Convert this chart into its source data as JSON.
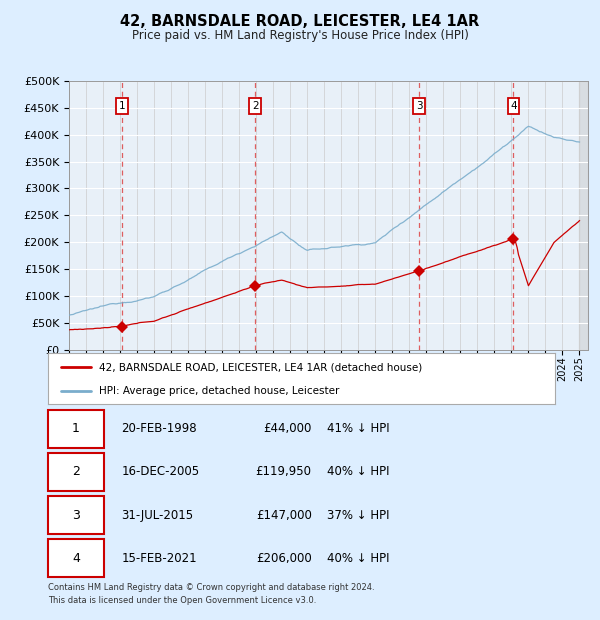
{
  "title1": "42, BARNSDALE ROAD, LEICESTER, LE4 1AR",
  "title2": "Price paid vs. HM Land Registry's House Price Index (HPI)",
  "legend1": "42, BARNSDALE ROAD, LEICESTER, LE4 1AR (detached house)",
  "legend2": "HPI: Average price, detached house, Leicester",
  "footer1": "Contains HM Land Registry data © Crown copyright and database right 2024.",
  "footer2": "This data is licensed under the Open Government Licence v3.0.",
  "transactions": [
    {
      "num": 1,
      "date": "20-FEB-1998",
      "price": 44000,
      "price_str": "£44,000",
      "hpi_pct": "41% ↓ HPI",
      "year": 1998.12
    },
    {
      "num": 2,
      "date": "16-DEC-2005",
      "price": 119950,
      "price_str": "£119,950",
      "hpi_pct": "40% ↓ HPI",
      "year": 2005.95
    },
    {
      "num": 3,
      "date": "31-JUL-2015",
      "price": 147000,
      "price_str": "£147,000",
      "hpi_pct": "37% ↓ HPI",
      "year": 2015.58
    },
    {
      "num": 4,
      "date": "15-FEB-2021",
      "price": 206000,
      "price_str": "£206,000",
      "hpi_pct": "40% ↓ HPI",
      "year": 2021.12
    }
  ],
  "red_color": "#cc0000",
  "blue_color": "#7aadcc",
  "bg_color": "#ddeeff",
  "plot_bg": "#e8f0f8",
  "grid_color": "#ffffff",
  "dashed_color": "#dd4444",
  "ylim": [
    0,
    500000
  ],
  "yticks": [
    0,
    50000,
    100000,
    150000,
    200000,
    250000,
    300000,
    350000,
    400000,
    450000,
    500000
  ]
}
